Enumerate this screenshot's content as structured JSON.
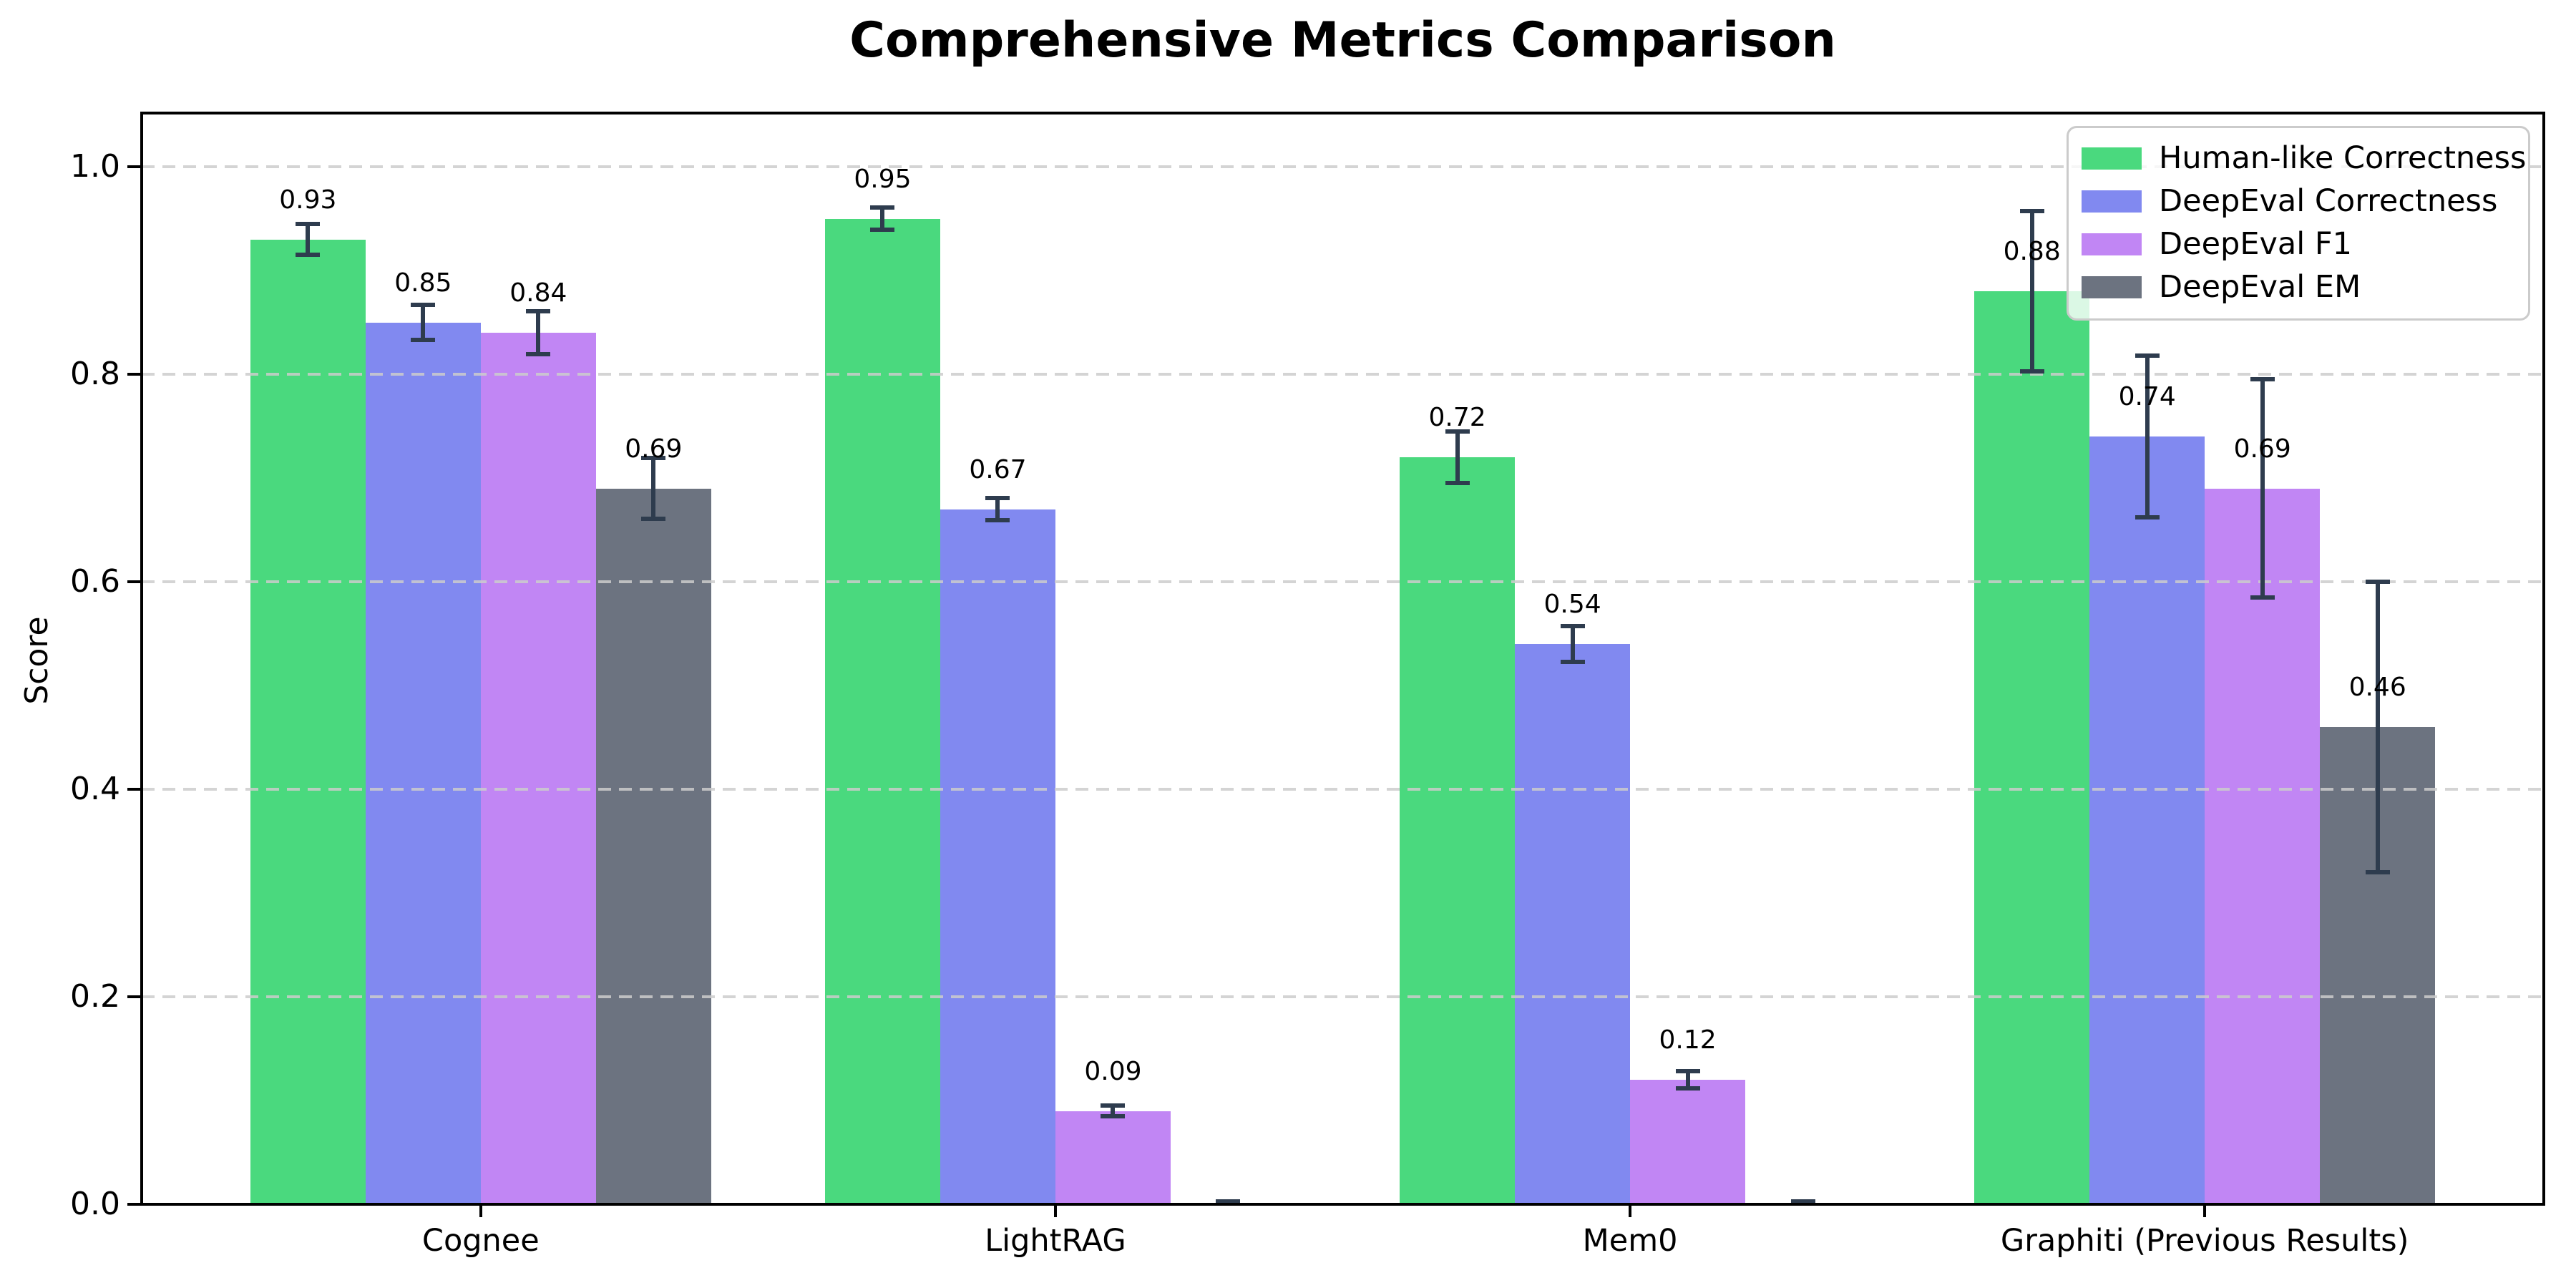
{
  "figure": {
    "background": "#ffffff",
    "errorbar_color": "#2e3c4e",
    "grid_color": "rgba(204,204,204,0.85)",
    "axis_color": "#000000"
  },
  "chart_data": {
    "type": "bar",
    "title": "Comprehensive Metrics Comparison",
    "xlabel": "",
    "ylabel": "Score",
    "categories": [
      "Cognee",
      "LightRAG",
      "Mem0",
      "Graphiti (Previous Results)"
    ],
    "series": [
      {
        "name": "Human-like Correctness",
        "color": "#4ad97e",
        "values": [
          0.93,
          0.95,
          0.72,
          0.88
        ],
        "errors": [
          0.015,
          0.011,
          0.025,
          0.077
        ]
      },
      {
        "name": "DeepEval Correctness",
        "color": "#8189f0",
        "values": [
          0.85,
          0.67,
          0.54,
          0.74
        ],
        "errors": [
          0.017,
          0.011,
          0.017,
          0.078
        ]
      },
      {
        "name": "DeepEval F1",
        "color": "#c186f4",
        "values": [
          0.84,
          0.09,
          0.12,
          0.69
        ],
        "errors": [
          0.021,
          0.005,
          0.008,
          0.105
        ]
      },
      {
        "name": "DeepEval EM",
        "color": "#6c7380",
        "values": [
          0.69,
          0.0,
          0.0,
          0.46
        ],
        "errors": [
          0.029,
          0.003,
          0.003,
          0.14
        ]
      }
    ],
    "bar_labels": [
      [
        "0.93",
        "0.95",
        "0.72",
        "0.88"
      ],
      [
        "0.85",
        "0.67",
        "0.54",
        "0.74"
      ],
      [
        "0.84",
        "0.09",
        "0.12",
        "0.69"
      ],
      [
        "0.69",
        "",
        "",
        "0.46"
      ]
    ],
    "yticks": [
      "0.0",
      "0.2",
      "0.4",
      "0.6",
      "0.8",
      "1.0"
    ],
    "ytick_values": [
      0.0,
      0.2,
      0.4,
      0.6,
      0.8,
      1.0
    ],
    "ylim": [
      0.0,
      1.052
    ],
    "grid": "horizontal-dashed",
    "legend_position": "upper right"
  }
}
